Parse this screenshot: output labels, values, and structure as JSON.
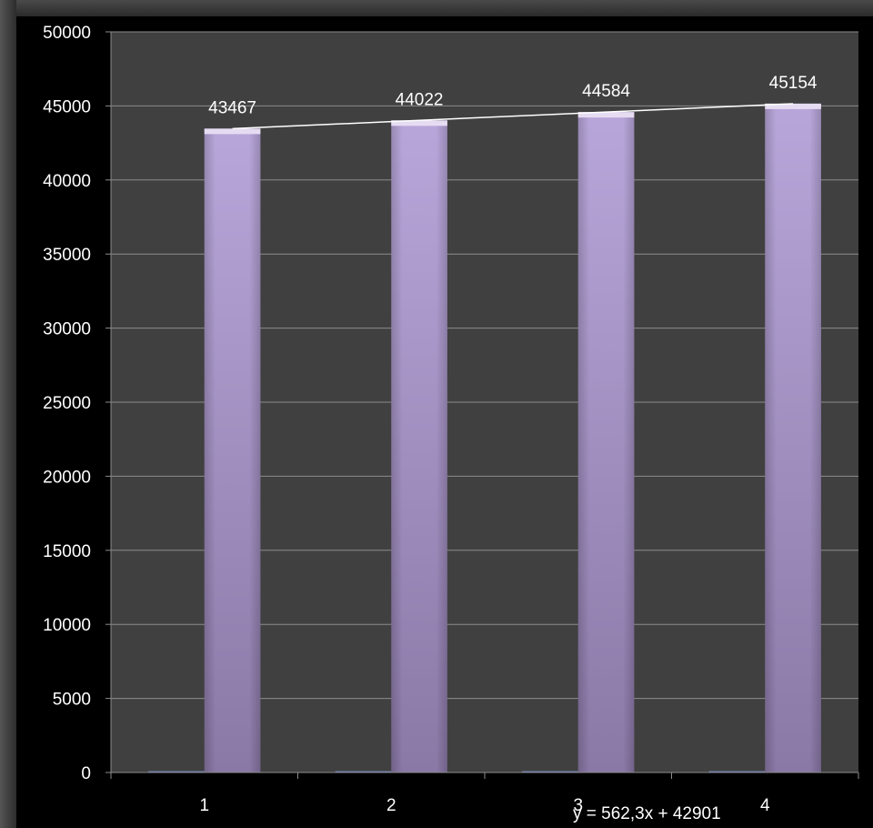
{
  "chart_data": {
    "type": "bar",
    "categories": [
      "1",
      "2",
      "3",
      "4"
    ],
    "series": [
      {
        "values": [
          0,
          0,
          0,
          0
        ],
        "color": "#6e7fb8"
      },
      {
        "values": [
          43467,
          44022,
          44584,
          45154
        ],
        "color": "#a693c8"
      }
    ],
    "data_labels": [
      "43467",
      "44022",
      "44584",
      "45154"
    ],
    "trendline": {
      "type": "linear",
      "slope": 562.3,
      "intercept": 42901,
      "equation": "y = 562,3x + 42901",
      "color": "#ffffff"
    },
    "ylim": [
      0,
      50000
    ],
    "yticks": [
      0,
      5000,
      10000,
      15000,
      20000,
      25000,
      30000,
      35000,
      40000,
      45000,
      50000
    ],
    "grid": true,
    "legend": "none",
    "title": "",
    "xlabel": "",
    "ylabel": "",
    "colors": {
      "plot_background": "#404040",
      "page_background": "#000000",
      "gridline": "#8c8c8c",
      "text": "#ffffff"
    }
  }
}
